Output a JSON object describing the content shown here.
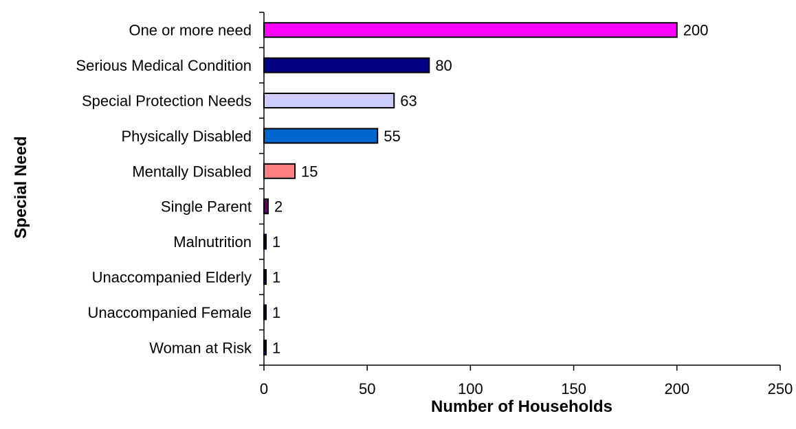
{
  "chart_data": {
    "type": "bar",
    "orientation": "horizontal",
    "title": "",
    "xlabel": "Number of Households",
    "ylabel": "Special Need",
    "xlim": [
      0,
      250
    ],
    "xticks": [
      0,
      50,
      100,
      150,
      200,
      250
    ],
    "grid": false,
    "legend": "none",
    "categories": [
      "One or more need",
      "Serious Medical Condition",
      "Special Protection Needs",
      "Physically Disabled",
      "Mentally Disabled",
      "Single Parent",
      "Malnutrition",
      "Unaccompanied Elderly",
      "Unaccompanied Female",
      "Woman at Risk"
    ],
    "values": [
      200,
      80,
      63,
      55,
      15,
      2,
      1,
      1,
      1,
      1
    ],
    "colors": [
      "#FF00FF",
      "#000080",
      "#CCCCFF",
      "#0066CC",
      "#FF8080",
      "#660066",
      "#000080",
      "#000080",
      "#000080",
      "#000080"
    ],
    "data_labels": [
      "200",
      "80",
      "63",
      "55",
      "15",
      "2",
      "1",
      "1",
      "1",
      "1"
    ]
  }
}
